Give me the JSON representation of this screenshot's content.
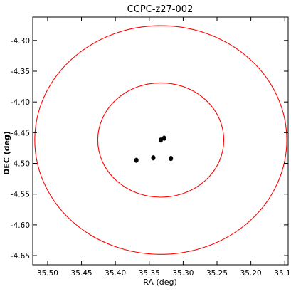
{
  "chart_data": {
    "type": "scatter",
    "title": "CCPC-z27-002",
    "xlabel": "RA (deg)",
    "ylabel": "DEC (deg)",
    "xlim": [
      35.522,
      35.145
    ],
    "ylim": [
      -4.665,
      -4.262
    ],
    "x_inverted": true,
    "grid": false,
    "x_ticks": [
      35.5,
      35.45,
      35.4,
      35.35,
      35.3,
      35.25,
      35.2,
      35.15
    ],
    "x_tick_labels": [
      "35.50",
      "35.45",
      "35.40",
      "35.35",
      "35.30",
      "35.25",
      "35.20",
      "35.15"
    ],
    "y_ticks": [
      -4.3,
      -4.35,
      -4.4,
      -4.45,
      -4.5,
      -4.55,
      -4.6,
      -4.65
    ],
    "y_tick_labels": [
      "-4.30",
      "-4.35",
      "-4.40",
      "-4.45",
      "-4.50",
      "-4.55",
      "-4.60",
      "-4.65"
    ],
    "circles": [
      {
        "center": [
          35.333,
          -4.462
        ],
        "radius_deg": 0.186,
        "color": "#ff0000"
      },
      {
        "center": [
          35.333,
          -4.462
        ],
        "radius_deg": 0.093,
        "color": "#ff0000"
      }
    ],
    "points": {
      "color": "#000000",
      "x": [
        35.369,
        35.344,
        35.333,
        35.328,
        35.318
      ],
      "y": [
        -4.495,
        -4.491,
        -4.462,
        -4.459,
        -4.492
      ]
    }
  }
}
